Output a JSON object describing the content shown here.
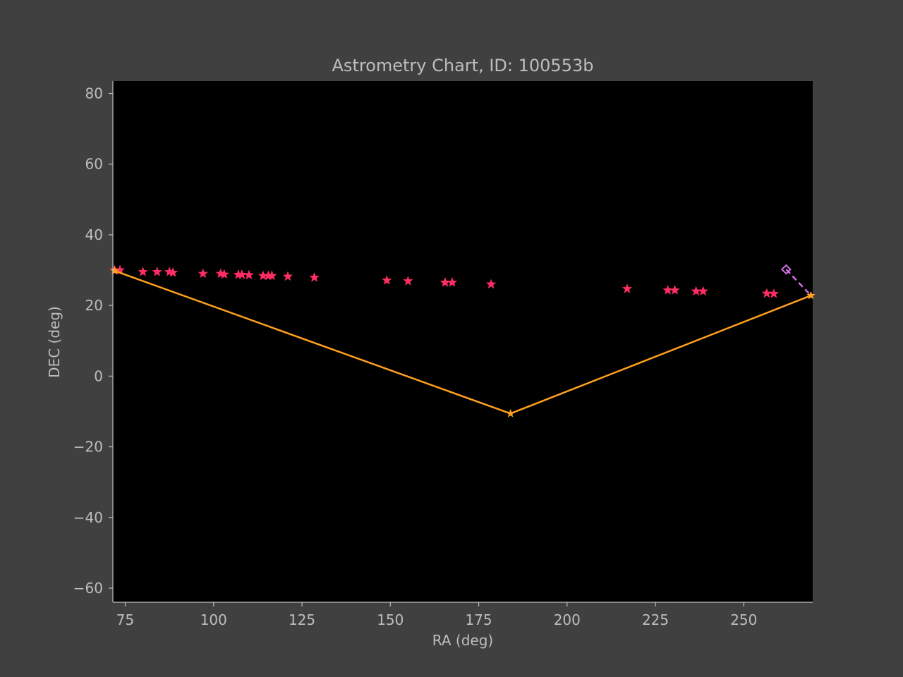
{
  "colors": {
    "figure_bg": "#404040",
    "axes_bg": "#000000",
    "text": "#bdbdbd",
    "spine": "#bdbdbd",
    "stars": "#ff2d63",
    "path": "#ffa01e",
    "projection": "#d070e0"
  },
  "chart_data": {
    "type": "scatter",
    "title": "Astrometry Chart, ID: 100553b",
    "xlabel": "RA (deg)",
    "ylabel": "DEC (deg)",
    "xlim": [
      71.5,
      269.5
    ],
    "ylim": [
      -64,
      83.5
    ],
    "xticks": [
      75,
      100,
      125,
      150,
      175,
      200,
      225,
      250
    ],
    "yticks": [
      -60,
      -40,
      -20,
      0,
      20,
      40,
      60,
      80
    ],
    "grid": false,
    "series": [
      {
        "marker": "star",
        "color": "#ff2d63",
        "points": [
          [
            72.0,
            30.0
          ],
          [
            73.5,
            30.0
          ],
          [
            80.0,
            29.5
          ],
          [
            84.0,
            29.5
          ],
          [
            87.5,
            29.5
          ],
          [
            88.5,
            29.3
          ],
          [
            97.0,
            29.0
          ],
          [
            102.0,
            29.0
          ],
          [
            103.0,
            28.8
          ],
          [
            107.0,
            28.7
          ],
          [
            108.0,
            28.7
          ],
          [
            110.0,
            28.6
          ],
          [
            114.0,
            28.4
          ],
          [
            115.5,
            28.4
          ],
          [
            116.5,
            28.4
          ],
          [
            121.0,
            28.2
          ],
          [
            128.5,
            27.9
          ],
          [
            149.0,
            27.1
          ],
          [
            155.0,
            26.9
          ],
          [
            165.5,
            26.5
          ],
          [
            167.5,
            26.5
          ],
          [
            178.5,
            26.0
          ],
          [
            217.0,
            24.7
          ],
          [
            228.5,
            24.3
          ],
          [
            230.5,
            24.3
          ],
          [
            236.5,
            24.0
          ],
          [
            238.5,
            24.0
          ],
          [
            256.5,
            23.4
          ],
          [
            258.5,
            23.3
          ]
        ]
      },
      {
        "marker": "star-line",
        "color": "#ffa01e",
        "points": [
          [
            72.0,
            29.8
          ],
          [
            184.0,
            -10.6
          ],
          [
            269.0,
            22.8
          ]
        ]
      },
      {
        "marker": "diamond-dashed",
        "color": "#d070e0",
        "points": [
          [
            262.0,
            30.2
          ],
          [
            269.0,
            22.8
          ]
        ]
      }
    ]
  }
}
